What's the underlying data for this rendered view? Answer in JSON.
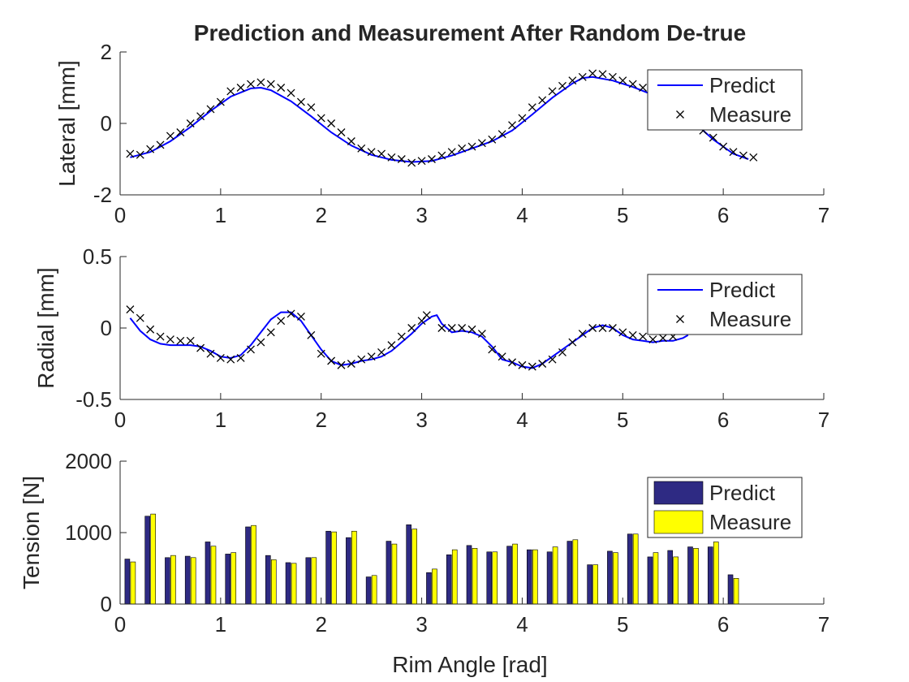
{
  "figure": {
    "title": "Prediction and Measurement After Random De-true",
    "xlabel": "Rim Angle [rad]"
  },
  "colors": {
    "predict_line": "#0000ff",
    "measure_marker": "#000000",
    "bar_predict": "#2e2a83",
    "bar_measure": "#ffff00",
    "axis": "#262626"
  },
  "chart_data": [
    {
      "type": "line",
      "ylabel": "Lateral [mm]",
      "xlim": [
        0,
        7
      ],
      "ylim": [
        -2,
        2
      ],
      "xticks": [
        0,
        1,
        2,
        3,
        4,
        5,
        6,
        7
      ],
      "yticks": [
        -2,
        0,
        2
      ],
      "legend": {
        "placement": "top-right",
        "entries": [
          "Predict",
          "Measure"
        ]
      },
      "series": [
        {
          "name": "Predict",
          "style": "line",
          "x": [
            0.1,
            0.3,
            0.5,
            0.7,
            0.9,
            1.1,
            1.3,
            1.4,
            1.5,
            1.7,
            1.9,
            2.1,
            2.3,
            2.5,
            2.7,
            2.9,
            3.1,
            3.3,
            3.5,
            3.7,
            3.9,
            4.1,
            4.3,
            4.5,
            4.6,
            4.7,
            4.9,
            5.1,
            5.3,
            5.5,
            5.7,
            5.9,
            6.1,
            6.25
          ],
          "y": [
            -0.95,
            -0.8,
            -0.5,
            -0.1,
            0.35,
            0.75,
            0.98,
            1.0,
            0.93,
            0.62,
            0.2,
            -0.25,
            -0.62,
            -0.88,
            -1.02,
            -1.08,
            -1.05,
            -0.9,
            -0.7,
            -0.5,
            -0.2,
            0.25,
            0.72,
            1.12,
            1.27,
            1.3,
            1.2,
            1.02,
            0.8,
            0.5,
            0.05,
            -0.45,
            -0.85,
            -1.0
          ]
        },
        {
          "name": "Measure",
          "style": "marker",
          "x": [
            0.1,
            0.2,
            0.3,
            0.4,
            0.5,
            0.6,
            0.7,
            0.8,
            0.9,
            1.0,
            1.1,
            1.2,
            1.3,
            1.4,
            1.5,
            1.6,
            1.7,
            1.8,
            1.9,
            2.0,
            2.1,
            2.2,
            2.3,
            2.4,
            2.5,
            2.6,
            2.7,
            2.8,
            2.9,
            3.0,
            3.1,
            3.2,
            3.3,
            3.4,
            3.5,
            3.6,
            3.7,
            3.8,
            3.9,
            4.0,
            4.1,
            4.2,
            4.3,
            4.4,
            4.5,
            4.6,
            4.7,
            4.8,
            4.9,
            5.0,
            5.1,
            5.2,
            5.3,
            5.4,
            5.5,
            5.6,
            5.7,
            5.8,
            5.9,
            6.0,
            6.1,
            6.2,
            6.3
          ],
          "y": [
            -0.85,
            -0.88,
            -0.72,
            -0.6,
            -0.35,
            -0.25,
            0.0,
            0.2,
            0.4,
            0.6,
            0.9,
            1.0,
            1.1,
            1.15,
            1.1,
            1.0,
            0.85,
            0.6,
            0.45,
            0.15,
            0.0,
            -0.25,
            -0.5,
            -0.7,
            -0.8,
            -0.85,
            -0.95,
            -1.0,
            -1.1,
            -1.05,
            -1.0,
            -0.9,
            -0.8,
            -0.7,
            -0.65,
            -0.55,
            -0.45,
            -0.3,
            -0.05,
            0.15,
            0.45,
            0.65,
            0.9,
            1.05,
            1.2,
            1.3,
            1.4,
            1.38,
            1.3,
            1.2,
            1.1,
            1.0,
            0.9,
            0.8,
            0.6,
            0.35,
            0.1,
            -0.2,
            -0.4,
            -0.65,
            -0.8,
            -0.9,
            -0.95
          ]
        }
      ]
    },
    {
      "type": "line",
      "ylabel": "Radial [mm]",
      "xlim": [
        0,
        7
      ],
      "ylim": [
        -0.5,
        0.5
      ],
      "xticks": [
        0,
        1,
        2,
        3,
        4,
        5,
        6,
        7
      ],
      "yticks": [
        -0.5,
        0,
        0.5
      ],
      "legend": {
        "placement": "top-right",
        "entries": [
          "Predict",
          "Measure"
        ]
      },
      "series": [
        {
          "name": "Predict",
          "style": "line",
          "x": [
            0.1,
            0.2,
            0.3,
            0.4,
            0.5,
            0.6,
            0.7,
            0.8,
            0.9,
            1.0,
            1.1,
            1.2,
            1.3,
            1.4,
            1.5,
            1.6,
            1.7,
            1.8,
            1.9,
            2.0,
            2.1,
            2.2,
            2.3,
            2.4,
            2.5,
            2.6,
            2.7,
            2.8,
            2.9,
            3.0,
            3.1,
            3.15,
            3.2,
            3.3,
            3.4,
            3.5,
            3.6,
            3.7,
            3.8,
            3.9,
            4.0,
            4.1,
            4.2,
            4.3,
            4.4,
            4.5,
            4.6,
            4.7,
            4.8,
            4.9,
            5.0,
            5.1,
            5.2,
            5.3,
            5.4,
            5.5,
            5.6,
            5.65
          ],
          "y": [
            0.07,
            -0.02,
            -0.08,
            -0.11,
            -0.12,
            -0.12,
            -0.12,
            -0.13,
            -0.16,
            -0.2,
            -0.21,
            -0.19,
            -0.12,
            -0.03,
            0.06,
            0.11,
            0.11,
            0.05,
            -0.05,
            -0.15,
            -0.23,
            -0.26,
            -0.25,
            -0.23,
            -0.22,
            -0.2,
            -0.16,
            -0.1,
            -0.04,
            0.03,
            0.08,
            0.09,
            0.03,
            -0.03,
            -0.02,
            -0.03,
            -0.06,
            -0.13,
            -0.22,
            -0.24,
            -0.27,
            -0.28,
            -0.25,
            -0.2,
            -0.15,
            -0.1,
            -0.05,
            0.0,
            0.02,
            0.0,
            -0.05,
            -0.08,
            -0.09,
            -0.1,
            -0.09,
            -0.09,
            -0.07,
            -0.05
          ]
        },
        {
          "name": "Measure",
          "style": "marker",
          "x": [
            0.1,
            0.2,
            0.3,
            0.4,
            0.5,
            0.6,
            0.7,
            0.8,
            0.9,
            1.0,
            1.1,
            1.2,
            1.3,
            1.4,
            1.5,
            1.6,
            1.7,
            1.8,
            1.9,
            2.0,
            2.1,
            2.2,
            2.3,
            2.4,
            2.5,
            2.6,
            2.7,
            2.8,
            2.9,
            3.0,
            3.05,
            3.2,
            3.3,
            3.4,
            3.5,
            3.6,
            3.7,
            3.8,
            3.9,
            4.0,
            4.1,
            4.2,
            4.3,
            4.4,
            4.5,
            4.6,
            4.7,
            4.8,
            4.9,
            5.0,
            5.1,
            5.2,
            5.3,
            5.4,
            5.5
          ],
          "y": [
            0.13,
            0.07,
            -0.01,
            -0.06,
            -0.08,
            -0.09,
            -0.09,
            -0.14,
            -0.18,
            -0.21,
            -0.22,
            -0.21,
            -0.15,
            -0.1,
            -0.03,
            0.05,
            0.1,
            0.08,
            -0.05,
            -0.18,
            -0.23,
            -0.26,
            -0.25,
            -0.22,
            -0.2,
            -0.17,
            -0.12,
            -0.06,
            0.0,
            0.05,
            0.09,
            0.0,
            0.0,
            0.0,
            -0.01,
            -0.04,
            -0.15,
            -0.2,
            -0.24,
            -0.26,
            -0.27,
            -0.25,
            -0.22,
            -0.17,
            -0.1,
            -0.04,
            0.0,
            0.0,
            0.0,
            -0.03,
            -0.05,
            -0.06,
            -0.08,
            -0.07,
            -0.06
          ]
        }
      ]
    },
    {
      "type": "bar",
      "ylabel": "Tension [N]",
      "xlim": [
        0,
        7
      ],
      "ylim": [
        0,
        2000
      ],
      "xticks": [
        0,
        1,
        2,
        3,
        4,
        5,
        6,
        7
      ],
      "yticks": [
        0,
        1000,
        2000
      ],
      "legend": {
        "placement": "top-right",
        "entries": [
          "Predict",
          "Measure"
        ]
      },
      "x": [
        0.1,
        0.3,
        0.5,
        0.7,
        0.9,
        1.1,
        1.3,
        1.5,
        1.7,
        1.9,
        2.1,
        2.3,
        2.5,
        2.7,
        2.9,
        3.1,
        3.3,
        3.5,
        3.7,
        3.9,
        4.1,
        4.3,
        4.5,
        4.7,
        4.9,
        5.1,
        5.3,
        5.5,
        5.7,
        5.9,
        6.1
      ],
      "series": [
        {
          "name": "Predict",
          "values": [
            630,
            1230,
            650,
            670,
            870,
            700,
            1080,
            680,
            580,
            650,
            1020,
            930,
            380,
            880,
            1110,
            440,
            690,
            820,
            730,
            810,
            760,
            730,
            880,
            550,
            740,
            980,
            660,
            750,
            800,
            800,
            410
          ]
        },
        {
          "name": "Measure",
          "values": [
            590,
            1260,
            680,
            650,
            810,
            720,
            1100,
            620,
            570,
            650,
            1010,
            1020,
            400,
            840,
            1050,
            490,
            760,
            780,
            730,
            840,
            760,
            800,
            900,
            550,
            720,
            980,
            720,
            660,
            780,
            870,
            360
          ]
        }
      ]
    }
  ]
}
